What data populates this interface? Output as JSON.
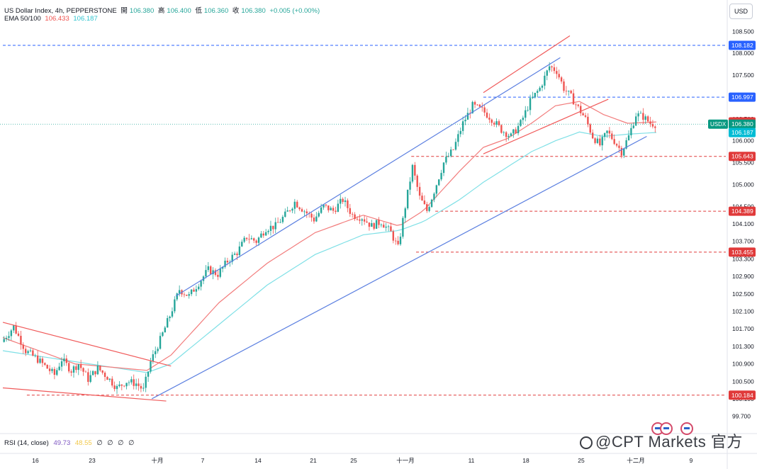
{
  "legend": {
    "symbol": "US Dollar Index, 4h, PEPPERSTONE",
    "open_label": "開",
    "open": "106.380",
    "high_label": "高",
    "high": "106.400",
    "low_label": "低",
    "low": "106.360",
    "close_label": "收",
    "close": "106.380",
    "change": "+0.005 (+0.00%)",
    "ema_label": "EMA 50/100",
    "ema50": "106.433",
    "ema100": "106.187"
  },
  "currency_button": "USD",
  "rsi_legend": {
    "label": "RSI (14, close)",
    "v1": "49.73",
    "v2": "48.55",
    "empties": [
      "∅",
      "∅",
      "∅",
      "∅"
    ]
  },
  "watermark": "@CPT Markets 官方",
  "colors": {
    "up": "#26a69a",
    "down": "#ef5350",
    "ema50": "#f27c7c",
    "ema100": "#7fe0e6",
    "channel": "#5b7fe0",
    "wedge": "#f05a5a",
    "blue_level": "#2962ff",
    "red_level": "#e03a3a"
  },
  "chart_data": {
    "type": "candlestick",
    "ylim": [
      99.5,
      108.7
    ],
    "y_ticks": [
      "108.500",
      "108.000",
      "107.500",
      "107.000",
      "106.500",
      "106.000",
      "105.500",
      "105.000",
      "104.500",
      "104.100",
      "103.700",
      "103.300",
      "102.900",
      "102.500",
      "102.100",
      "101.700",
      "101.300",
      "100.900",
      "100.500",
      "100.100",
      "99.700"
    ],
    "x_ticks": [
      "16",
      "23",
      "十月",
      "7",
      "14",
      "21",
      "25",
      "十一月",
      "11",
      "18",
      "25",
      "十二月",
      "9"
    ],
    "current_price_label": "USDX",
    "price_tags": [
      {
        "value": 108.182,
        "label": "108.182",
        "kind": "blue"
      },
      {
        "value": 106.997,
        "label": "106.997",
        "kind": "blue"
      },
      {
        "value": 106.433,
        "label": "106.433",
        "kind": "red"
      },
      {
        "value": 106.38,
        "label": "106.380",
        "kind": "teal"
      },
      {
        "value": 106.187,
        "label": "106.187",
        "kind": "cyan"
      },
      {
        "value": 105.643,
        "label": "105.643",
        "kind": "red"
      },
      {
        "value": 104.389,
        "label": "104.389",
        "kind": "red"
      },
      {
        "value": 103.455,
        "label": "103.455",
        "kind": "red"
      },
      {
        "value": 100.184,
        "label": "100.184",
        "kind": "red"
      }
    ],
    "path_points": [
      [
        0,
        101.4
      ],
      [
        5,
        101.75
      ],
      [
        10,
        101.2
      ],
      [
        15,
        101.0
      ],
      [
        19,
        100.8
      ],
      [
        22,
        100.65
      ],
      [
        25,
        101.0
      ],
      [
        29,
        100.75
      ],
      [
        32,
        100.9
      ],
      [
        36,
        100.55
      ],
      [
        40,
        100.8
      ],
      [
        44,
        100.6
      ],
      [
        48,
        100.35
      ],
      [
        52,
        100.5
      ],
      [
        56,
        100.45
      ],
      [
        59,
        100.3
      ],
      [
        62,
        100.95
      ],
      [
        66,
        101.45
      ],
      [
        70,
        102.0
      ],
      [
        74,
        102.6
      ],
      [
        78,
        102.45
      ],
      [
        82,
        102.75
      ],
      [
        86,
        103.05
      ],
      [
        90,
        102.95
      ],
      [
        94,
        103.25
      ],
      [
        98,
        103.45
      ],
      [
        102,
        103.8
      ],
      [
        106,
        103.7
      ],
      [
        110,
        104.0
      ],
      [
        114,
        104.05
      ],
      [
        118,
        104.3
      ],
      [
        122,
        104.6
      ],
      [
        126,
        104.4
      ],
      [
        130,
        104.2
      ],
      [
        134,
        104.5
      ],
      [
        138,
        104.4
      ],
      [
        142,
        104.65
      ],
      [
        146,
        104.3
      ],
      [
        150,
        104.25
      ],
      [
        154,
        104.05
      ],
      [
        158,
        104.15
      ],
      [
        162,
        103.9
      ],
      [
        165,
        103.55
      ],
      [
        168,
        104.5
      ],
      [
        171,
        105.4
      ],
      [
        174,
        104.7
      ],
      [
        177,
        104.4
      ],
      [
        180,
        104.85
      ],
      [
        184,
        105.5
      ],
      [
        188,
        105.8
      ],
      [
        192,
        106.4
      ],
      [
        196,
        106.8
      ],
      [
        200,
        106.7
      ],
      [
        204,
        106.5
      ],
      [
        208,
        106.25
      ],
      [
        212,
        106.1
      ],
      [
        216,
        106.4
      ],
      [
        220,
        106.9
      ],
      [
        224,
        107.2
      ],
      [
        228,
        107.7
      ],
      [
        231,
        107.6
      ],
      [
        234,
        107.2
      ],
      [
        237,
        107.0
      ],
      [
        240,
        106.75
      ],
      [
        243,
        106.5
      ],
      [
        246,
        106.1
      ],
      [
        249,
        105.9
      ],
      [
        252,
        106.2
      ],
      [
        255,
        106.0
      ],
      [
        258,
        105.75
      ],
      [
        261,
        106.1
      ],
      [
        264,
        106.6
      ],
      [
        267,
        106.55
      ],
      [
        270,
        106.4
      ],
      [
        272,
        106.38
      ]
    ],
    "candle_count": 272,
    "ema50_points": [
      [
        0,
        101.5
      ],
      [
        30,
        100.9
      ],
      [
        60,
        100.75
      ],
      [
        70,
        101.1
      ],
      [
        90,
        102.3
      ],
      [
        110,
        103.2
      ],
      [
        130,
        103.9
      ],
      [
        150,
        104.3
      ],
      [
        165,
        104.05
      ],
      [
        175,
        104.4
      ],
      [
        190,
        105.3
      ],
      [
        200,
        105.85
      ],
      [
        210,
        106.05
      ],
      [
        220,
        106.4
      ],
      [
        230,
        106.8
      ],
      [
        240,
        106.9
      ],
      [
        250,
        106.6
      ],
      [
        260,
        106.4
      ],
      [
        272,
        106.43
      ]
    ],
    "ema100_points": [
      [
        0,
        101.2
      ],
      [
        30,
        100.95
      ],
      [
        60,
        100.7
      ],
      [
        70,
        100.9
      ],
      [
        90,
        101.8
      ],
      [
        110,
        102.7
      ],
      [
        130,
        103.4
      ],
      [
        150,
        103.85
      ],
      [
        165,
        103.95
      ],
      [
        175,
        104.15
      ],
      [
        190,
        104.65
      ],
      [
        200,
        105.05
      ],
      [
        210,
        105.4
      ],
      [
        220,
        105.75
      ],
      [
        230,
        106.0
      ],
      [
        240,
        106.2
      ],
      [
        250,
        106.1
      ],
      [
        260,
        106.15
      ],
      [
        272,
        106.19
      ]
    ],
    "channel_upper": [
      [
        72,
        102.45
      ],
      [
        232,
        107.9
      ]
    ],
    "channel_lower": [
      [
        62,
        100.1
      ],
      [
        268,
        106.1
      ]
    ],
    "channel_top_line": [
      [
        200,
        107.1
      ],
      [
        236,
        108.4
      ]
    ],
    "wedge_upper": [
      [
        0,
        101.85
      ],
      [
        70,
        100.85
      ]
    ],
    "wedge_lower": [
      [
        0,
        100.35
      ],
      [
        68,
        100.05
      ]
    ],
    "red_trend": [
      [
        200,
        105.7
      ],
      [
        252,
        106.95
      ]
    ],
    "level_lines": [
      {
        "value": 108.182,
        "from": 0,
        "kind": "blue"
      },
      {
        "value": 106.997,
        "from": 200,
        "kind": "blue"
      },
      {
        "value": 105.643,
        "from": 170,
        "kind": "red"
      },
      {
        "value": 104.389,
        "from": 180,
        "kind": "red"
      },
      {
        "value": 103.455,
        "from": 172,
        "kind": "red"
      },
      {
        "value": 100.184,
        "from": 10,
        "kind": "red"
      }
    ]
  }
}
